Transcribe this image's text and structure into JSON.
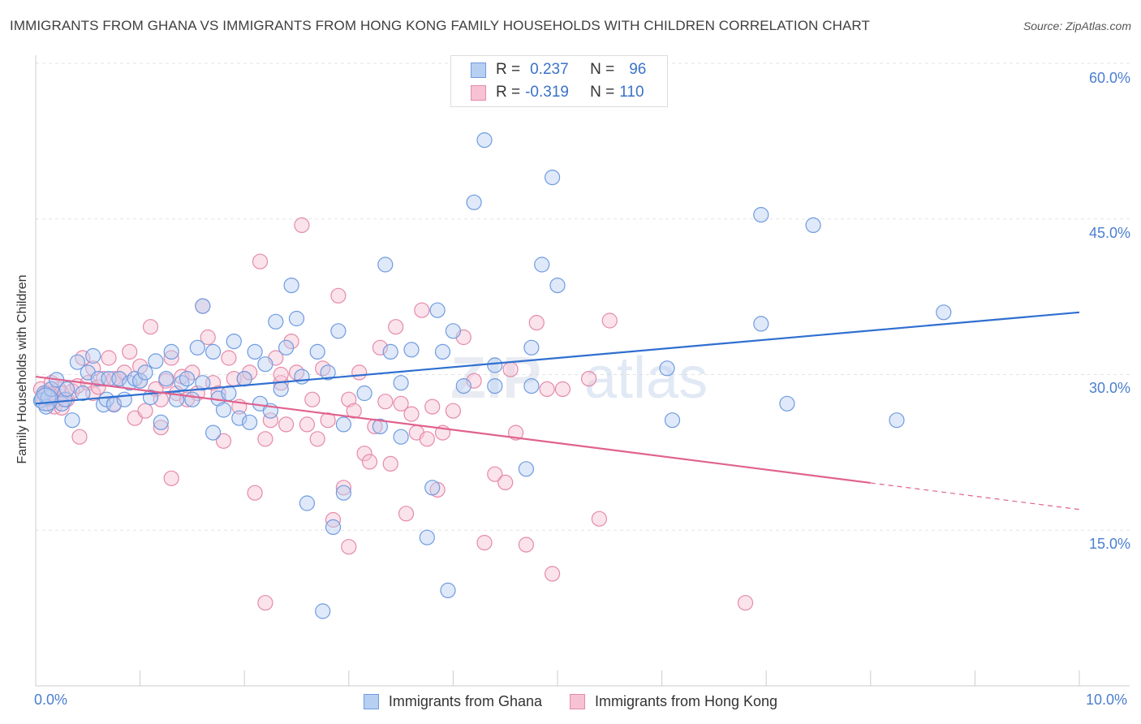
{
  "header": {
    "title": "IMMIGRANTS FROM GHANA VS IMMIGRANTS FROM HONG KONG FAMILY HOUSEHOLDS WITH CHILDREN CORRELATION CHART",
    "source": "Source: ZipAtlas.com"
  },
  "watermark": "ZIPatlas",
  "legend": {
    "r_label": "R =",
    "n_label": "N =",
    "series1": {
      "r": "0.237",
      "n": "96"
    },
    "series2": {
      "r": "-0.319",
      "n": "110"
    }
  },
  "colors": {
    "ghana_fill": "#b7cff2",
    "ghana_stroke": "#6f9be0",
    "ghana_line": "#2f6fd0",
    "hk_fill": "#f7c2d3",
    "hk_stroke": "#e58aaa",
    "hk_line": "#e0628e",
    "axis_text": "#4a7fcf",
    "grid": "#e3e3e3"
  },
  "chart_data": {
    "type": "scatter",
    "title": "IMMIGRANTS FROM GHANA VS IMMIGRANTS FROM HONG KONG FAMILY HOUSEHOLDS WITH CHILDREN CORRELATION CHART",
    "xlabel": "",
    "ylabel": "Family Households with Children",
    "xlim": [
      0,
      10
    ],
    "ylim": [
      0,
      60
    ],
    "y_ticks": [
      15,
      30,
      45,
      60
    ],
    "y_tick_labels": [
      "15.0%",
      "30.0%",
      "45.0%",
      "60.0%"
    ],
    "x_tick_labels": [
      "0.0%",
      "10.0%"
    ],
    "x_minor_ticks": [
      1,
      2,
      3,
      4,
      5,
      6,
      7,
      8,
      9,
      10
    ],
    "grid": true,
    "series": [
      {
        "name": "Immigrants from Ghana",
        "color": "#6f9be0",
        "r": 0.237,
        "n": 96,
        "trend": {
          "x0": 0,
          "y0": 27.2,
          "x1": 10,
          "y1": 36.0,
          "dashed_from": null
        },
        "points": [
          [
            0.05,
            27.5
          ],
          [
            0.08,
            28.2
          ],
          [
            0.1,
            26.9
          ],
          [
            0.12,
            27.8
          ],
          [
            0.15,
            28.6
          ],
          [
            0.2,
            29.5
          ],
          [
            0.25,
            27.2
          ],
          [
            0.28,
            27.6
          ],
          [
            0.3,
            28.6
          ],
          [
            0.35,
            25.6
          ],
          [
            0.4,
            31.2
          ],
          [
            0.45,
            28.2
          ],
          [
            0.5,
            30.2
          ],
          [
            0.55,
            31.8
          ],
          [
            0.6,
            29.6
          ],
          [
            0.65,
            27.1
          ],
          [
            0.68,
            27.6
          ],
          [
            0.7,
            29.6
          ],
          [
            0.75,
            27.1
          ],
          [
            0.8,
            29.6
          ],
          [
            0.85,
            27.6
          ],
          [
            0.9,
            29.2
          ],
          [
            0.95,
            29.6
          ],
          [
            1.0,
            29.4
          ],
          [
            1.05,
            30.2
          ],
          [
            1.1,
            27.8
          ],
          [
            1.15,
            31.3
          ],
          [
            1.2,
            25.4
          ],
          [
            1.25,
            29.6
          ],
          [
            1.3,
            32.2
          ],
          [
            1.35,
            27.6
          ],
          [
            1.4,
            29.2
          ],
          [
            1.45,
            29.6
          ],
          [
            1.5,
            27.6
          ],
          [
            1.55,
            32.6
          ],
          [
            1.6,
            29.2
          ],
          [
            1.6,
            36.6
          ],
          [
            1.7,
            32.2
          ],
          [
            1.7,
            24.4
          ],
          [
            1.75,
            27.7
          ],
          [
            1.8,
            26.6
          ],
          [
            1.85,
            28.2
          ],
          [
            1.9,
            33.2
          ],
          [
            1.95,
            25.8
          ],
          [
            2.0,
            29.6
          ],
          [
            2.05,
            25.4
          ],
          [
            2.1,
            32.2
          ],
          [
            2.15,
            27.2
          ],
          [
            2.2,
            31.0
          ],
          [
            2.25,
            26.5
          ],
          [
            2.3,
            35.1
          ],
          [
            2.35,
            28.6
          ],
          [
            2.4,
            32.6
          ],
          [
            2.45,
            38.6
          ],
          [
            2.5,
            35.4
          ],
          [
            2.55,
            29.8
          ],
          [
            2.6,
            17.6
          ],
          [
            2.7,
            32.2
          ],
          [
            2.75,
            7.2
          ],
          [
            2.8,
            30.2
          ],
          [
            2.85,
            15.3
          ],
          [
            2.9,
            34.2
          ],
          [
            2.95,
            25.2
          ],
          [
            2.95,
            18.6
          ],
          [
            3.15,
            28.2
          ],
          [
            3.3,
            25.0
          ],
          [
            3.35,
            40.6
          ],
          [
            3.4,
            32.2
          ],
          [
            3.5,
            24.0
          ],
          [
            3.5,
            29.2
          ],
          [
            3.6,
            32.4
          ],
          [
            3.75,
            14.3
          ],
          [
            3.8,
            19.1
          ],
          [
            3.85,
            36.2
          ],
          [
            3.9,
            32.2
          ],
          [
            3.95,
            9.2
          ],
          [
            4.0,
            34.2
          ],
          [
            4.1,
            28.9
          ],
          [
            4.2,
            46.6
          ],
          [
            4.3,
            52.6
          ],
          [
            4.4,
            28.9
          ],
          [
            4.4,
            30.9
          ],
          [
            4.7,
            20.9
          ],
          [
            4.75,
            28.9
          ],
          [
            4.75,
            32.6
          ],
          [
            4.85,
            40.6
          ],
          [
            4.95,
            49.0
          ],
          [
            5.0,
            38.6
          ],
          [
            6.05,
            30.6
          ],
          [
            6.1,
            25.6
          ],
          [
            6.95,
            34.9
          ],
          [
            6.95,
            45.4
          ],
          [
            7.2,
            27.2
          ],
          [
            7.45,
            44.4
          ],
          [
            8.25,
            25.6
          ],
          [
            8.7,
            36.0
          ]
        ]
      },
      {
        "name": "Immigrants from Hong Kong",
        "color": "#e58aaa",
        "r": -0.319,
        "n": 110,
        "trend": {
          "x0": 0,
          "y0": 29.8,
          "x1": 10,
          "y1": 17.0,
          "dashed_from": 8.0
        },
        "points": [
          [
            0.05,
            28.6
          ],
          [
            0.08,
            27.6
          ],
          [
            0.1,
            28.2
          ],
          [
            0.12,
            27.2
          ],
          [
            0.15,
            28.6
          ],
          [
            0.18,
            26.9
          ],
          [
            0.2,
            27.6
          ],
          [
            0.22,
            28.6
          ],
          [
            0.25,
            28.2
          ],
          [
            0.3,
            27.6
          ],
          [
            0.35,
            28.4
          ],
          [
            0.4,
            28.9
          ],
          [
            0.42,
            24.0
          ],
          [
            0.45,
            31.6
          ],
          [
            0.5,
            29.2
          ],
          [
            0.55,
            28.2
          ],
          [
            0.6,
            28.8
          ],
          [
            0.65,
            29.6
          ],
          [
            0.7,
            31.6
          ],
          [
            0.75,
            29.6
          ],
          [
            0.8,
            29.6
          ],
          [
            0.85,
            30.2
          ],
          [
            0.9,
            32.2
          ],
          [
            0.95,
            25.8
          ],
          [
            1.0,
            29.4
          ],
          [
            1.05,
            26.5
          ],
          [
            1.1,
            34.6
          ],
          [
            1.15,
            28.6
          ],
          [
            1.2,
            27.6
          ],
          [
            1.25,
            29.4
          ],
          [
            1.3,
            31.6
          ],
          [
            1.3,
            20.0
          ],
          [
            1.35,
            28.2
          ],
          [
            1.4,
            29.8
          ],
          [
            1.45,
            27.6
          ],
          [
            1.5,
            30.2
          ],
          [
            1.55,
            28.2
          ],
          [
            1.6,
            36.6
          ],
          [
            1.65,
            33.6
          ],
          [
            1.7,
            29.2
          ],
          [
            1.75,
            28.2
          ],
          [
            1.8,
            23.6
          ],
          [
            1.85,
            31.6
          ],
          [
            1.9,
            29.6
          ],
          [
            1.95,
            26.9
          ],
          [
            2.0,
            29.6
          ],
          [
            2.05,
            30.2
          ],
          [
            2.1,
            18.6
          ],
          [
            2.15,
            40.9
          ],
          [
            2.2,
            23.8
          ],
          [
            2.25,
            25.6
          ],
          [
            2.3,
            31.6
          ],
          [
            2.35,
            29.2
          ],
          [
            2.4,
            25.2
          ],
          [
            2.45,
            33.2
          ],
          [
            2.5,
            30.2
          ],
          [
            2.55,
            44.4
          ],
          [
            2.6,
            25.2
          ],
          [
            2.65,
            27.6
          ],
          [
            2.7,
            23.8
          ],
          [
            2.75,
            30.6
          ],
          [
            2.8,
            25.6
          ],
          [
            2.85,
            16.0
          ],
          [
            2.9,
            37.6
          ],
          [
            2.95,
            19.1
          ],
          [
            3.0,
            27.6
          ],
          [
            3.05,
            26.5
          ],
          [
            3.1,
            30.2
          ],
          [
            3.15,
            22.4
          ],
          [
            3.2,
            21.6
          ],
          [
            3.25,
            25.0
          ],
          [
            3.3,
            32.6
          ],
          [
            3.35,
            27.4
          ],
          [
            3.4,
            21.4
          ],
          [
            3.45,
            34.6
          ],
          [
            3.5,
            27.2
          ],
          [
            3.55,
            16.6
          ],
          [
            3.6,
            26.2
          ],
          [
            3.65,
            24.4
          ],
          [
            3.7,
            36.2
          ],
          [
            3.75,
            23.8
          ],
          [
            3.8,
            26.9
          ],
          [
            3.85,
            18.9
          ],
          [
            3.9,
            24.4
          ],
          [
            4.0,
            26.5
          ],
          [
            4.1,
            33.6
          ],
          [
            4.2,
            29.4
          ],
          [
            4.3,
            13.8
          ],
          [
            4.4,
            20.4
          ],
          [
            4.5,
            19.6
          ],
          [
            4.6,
            24.4
          ],
          [
            4.7,
            13.6
          ],
          [
            4.8,
            35.0
          ],
          [
            4.9,
            28.6
          ],
          [
            4.95,
            10.8
          ],
          [
            5.05,
            28.6
          ],
          [
            5.3,
            29.6
          ],
          [
            5.4,
            16.1
          ],
          [
            5.5,
            35.2
          ],
          [
            6.8,
            8.0
          ],
          [
            0.15,
            29.2
          ],
          [
            0.25,
            26.8
          ],
          [
            0.55,
            30.6
          ],
          [
            0.75,
            27.2
          ],
          [
            1.0,
            30.8
          ],
          [
            1.2,
            24.9
          ],
          [
            2.2,
            8.0
          ],
          [
            2.35,
            30.0
          ],
          [
            3.0,
            13.4
          ],
          [
            4.55,
            30.5
          ]
        ]
      }
    ]
  },
  "bottom_legend": {
    "series1": "Immigrants from Ghana",
    "series2": "Immigrants from Hong Kong"
  },
  "axes": {
    "ylabel": "Family Households with Children",
    "x_left": "0.0%",
    "x_right": "10.0%",
    "y_ticks": [
      "60.0%",
      "45.0%",
      "30.0%",
      "15.0%"
    ]
  }
}
